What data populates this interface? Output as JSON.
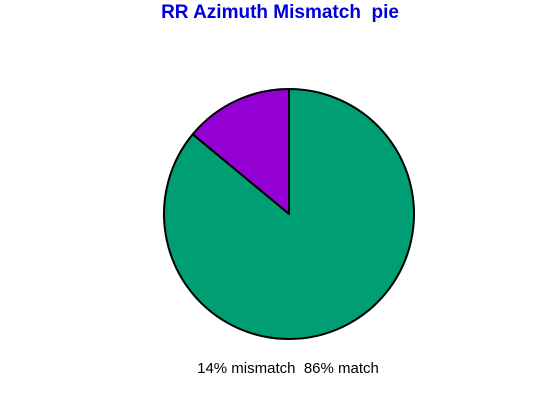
{
  "chart_data": {
    "type": "pie",
    "title": "RR Azimuth Mismatch  pie",
    "slices": [
      {
        "label": "mismatch",
        "value": 14,
        "color": "#9400D3"
      },
      {
        "label": "match",
        "value": 86,
        "color": "#009E73"
      }
    ],
    "slice_labels": [
      "14% mismatch",
      "86% match"
    ],
    "title_color": "#0000dd"
  }
}
